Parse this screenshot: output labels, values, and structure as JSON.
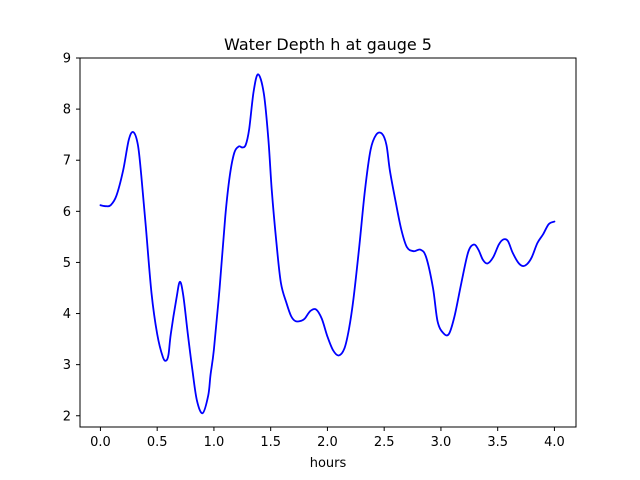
{
  "chart_data": {
    "type": "line",
    "title": "Water Depth h at gauge 5",
    "xlabel": "hours",
    "ylabel": "",
    "xlim": [
      -0.18,
      4.19
    ],
    "ylim": [
      1.78,
      9.0
    ],
    "xticks": [
      0.0,
      0.5,
      1.0,
      1.5,
      2.0,
      2.5,
      3.0,
      3.5,
      4.0
    ],
    "xtick_labels": [
      "0.0",
      "0.5",
      "1.0",
      "1.5",
      "2.0",
      "2.5",
      "3.0",
      "3.5",
      "4.0"
    ],
    "yticks": [
      2,
      3,
      4,
      5,
      6,
      7,
      8,
      9
    ],
    "ytick_labels": [
      "2",
      "3",
      "4",
      "5",
      "6",
      "7",
      "8",
      "9"
    ],
    "grid": false,
    "series": [
      {
        "color": "#0000ff",
        "x": [
          0.0,
          0.05,
          0.09,
          0.14,
          0.2,
          0.25,
          0.29,
          0.33,
          0.36,
          0.4,
          0.45,
          0.5,
          0.55,
          0.58,
          0.6,
          0.62,
          0.67,
          0.7,
          0.73,
          0.77,
          0.81,
          0.85,
          0.9,
          0.95,
          0.97,
          1.0,
          1.05,
          1.1,
          1.14,
          1.18,
          1.22,
          1.25,
          1.28,
          1.31,
          1.35,
          1.39,
          1.44,
          1.48,
          1.51,
          1.55,
          1.59,
          1.64,
          1.68,
          1.72,
          1.77,
          1.8,
          1.85,
          1.9,
          1.95,
          2.0,
          2.05,
          2.1,
          2.15,
          2.19,
          2.23,
          2.28,
          2.33,
          2.38,
          2.43,
          2.48,
          2.52,
          2.55,
          2.6,
          2.65,
          2.7,
          2.76,
          2.82,
          2.87,
          2.93,
          2.97,
          3.02,
          3.07,
          3.12,
          3.18,
          3.24,
          3.29,
          3.33,
          3.37,
          3.41,
          3.46,
          3.51,
          3.55,
          3.59,
          3.63,
          3.68,
          3.72,
          3.76,
          3.8,
          3.85,
          3.9,
          3.95,
          4.0
        ],
        "y": [
          6.12,
          6.1,
          6.12,
          6.3,
          6.8,
          7.4,
          7.55,
          7.3,
          6.7,
          5.7,
          4.4,
          3.6,
          3.15,
          3.08,
          3.2,
          3.6,
          4.3,
          4.62,
          4.35,
          3.6,
          2.9,
          2.3,
          2.05,
          2.4,
          2.8,
          3.3,
          4.5,
          5.9,
          6.7,
          7.15,
          7.27,
          7.25,
          7.3,
          7.6,
          8.35,
          8.68,
          8.3,
          7.4,
          6.4,
          5.4,
          4.6,
          4.2,
          3.95,
          3.85,
          3.86,
          3.9,
          4.05,
          4.08,
          3.9,
          3.55,
          3.28,
          3.18,
          3.32,
          3.7,
          4.3,
          5.3,
          6.4,
          7.2,
          7.5,
          7.52,
          7.3,
          6.8,
          6.2,
          5.65,
          5.3,
          5.22,
          5.25,
          5.1,
          4.5,
          3.85,
          3.62,
          3.6,
          3.95,
          4.6,
          5.2,
          5.35,
          5.25,
          5.05,
          4.98,
          5.1,
          5.35,
          5.45,
          5.42,
          5.2,
          5.0,
          4.93,
          4.97,
          5.1,
          5.38,
          5.55,
          5.75,
          5.8
        ]
      }
    ]
  }
}
